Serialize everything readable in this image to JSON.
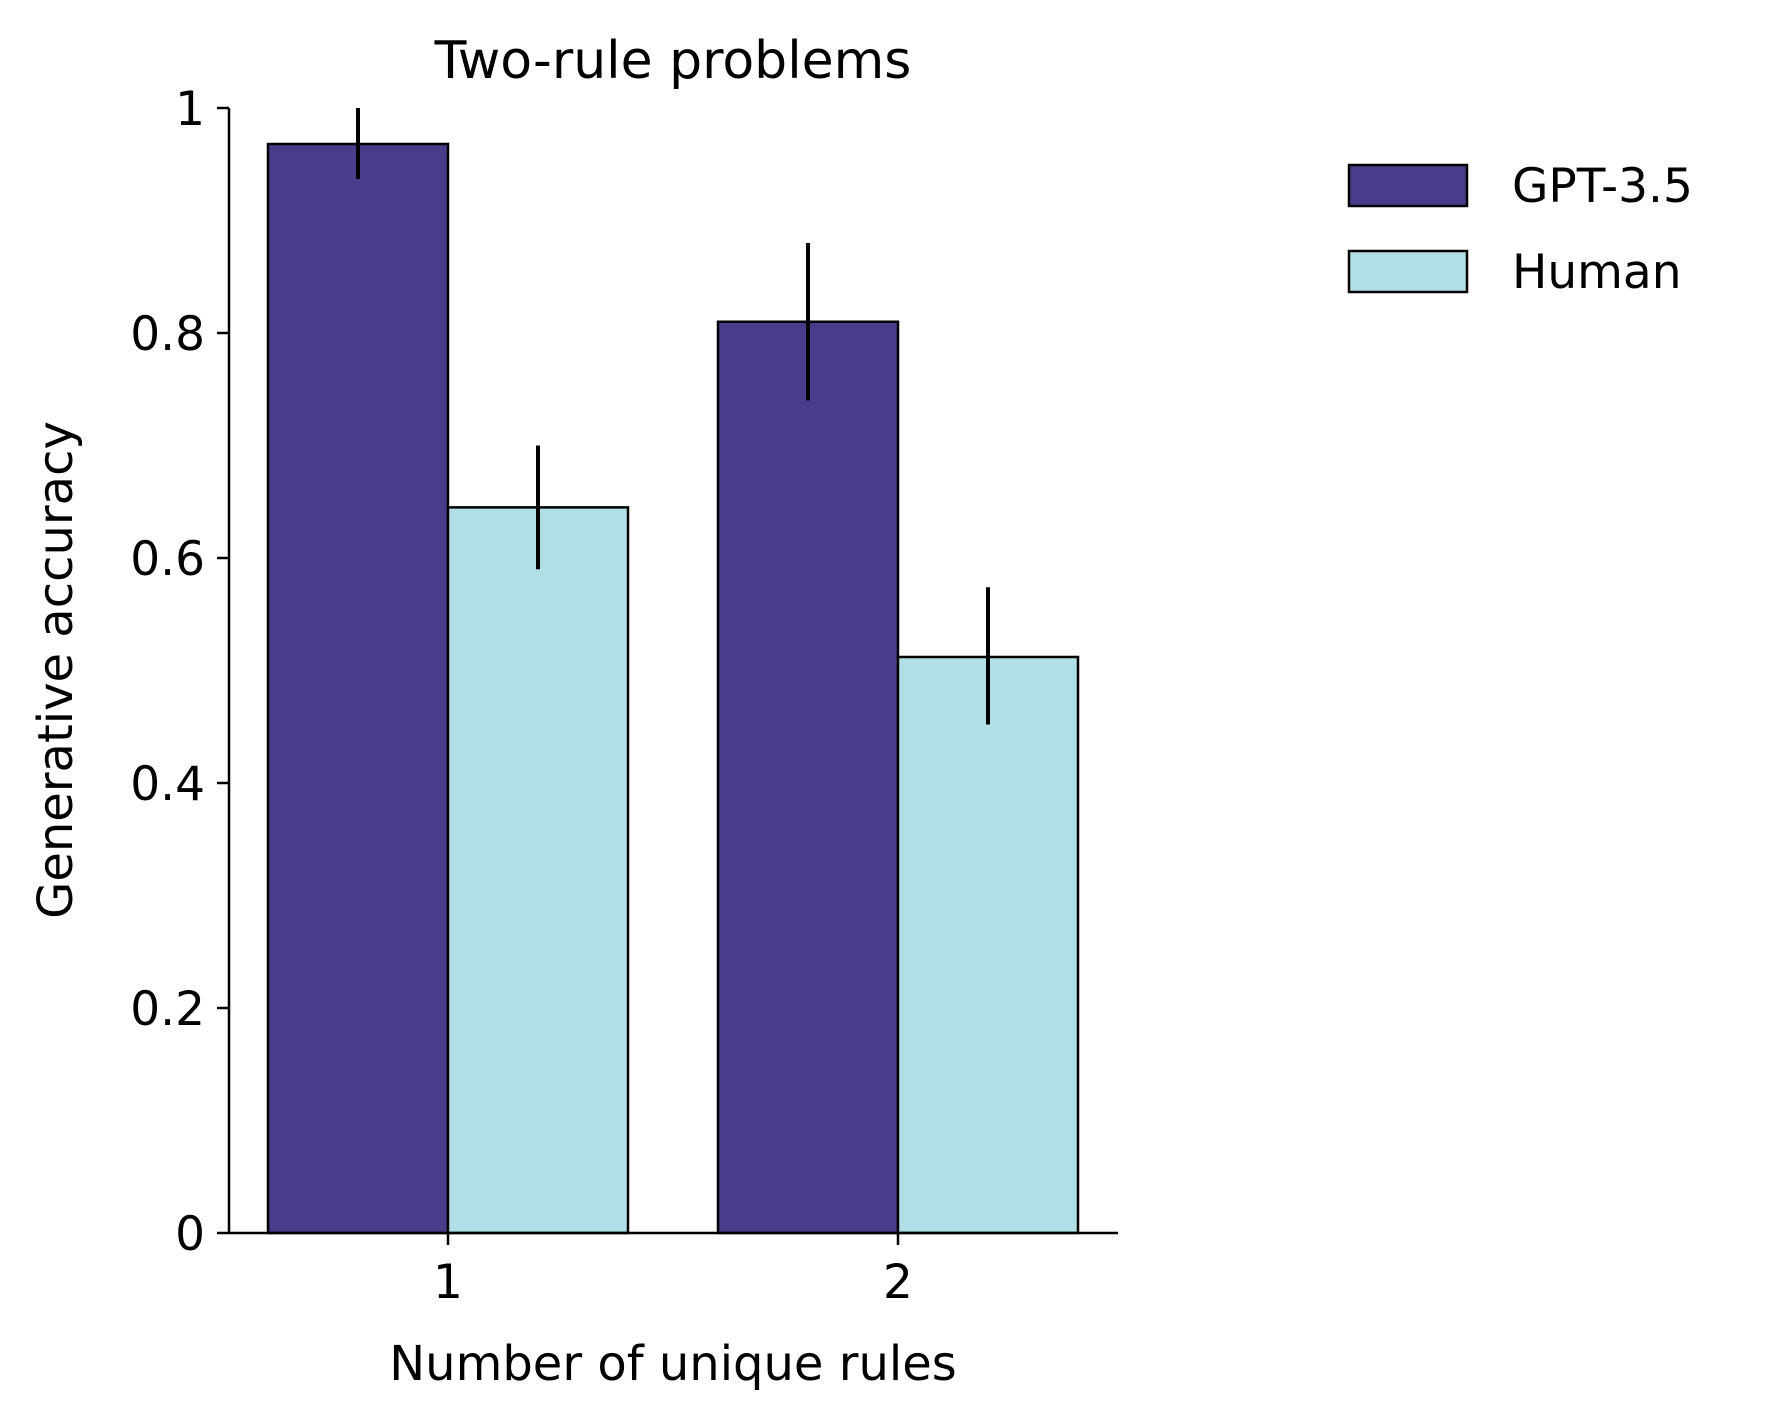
{
  "chart_data": {
    "type": "bar",
    "title": "Two-rule problems",
    "xlabel": "Number of unique rules",
    "ylabel": "Generative accuracy",
    "categories": [
      "1",
      "2"
    ],
    "ylim": [
      0,
      1
    ],
    "yticks": [
      0,
      0.2,
      0.4,
      0.6,
      0.8,
      1
    ],
    "ytick_labels": [
      "0",
      "0.2",
      "0.4",
      "0.6",
      "0.8",
      "1"
    ],
    "grid": false,
    "legend_position": "top-right, outside plot",
    "series": [
      {
        "name": "GPT-3.5",
        "color": "#483D8B",
        "values": [
          0.968,
          0.81
        ],
        "error_low": [
          0.937,
          0.74
        ],
        "error_high": [
          1.0,
          0.88
        ]
      },
      {
        "name": "Human",
        "color": "#B0E0E6",
        "values": [
          0.645,
          0.512
        ],
        "error_low": [
          0.59,
          0.452
        ],
        "error_high": [
          0.7,
          0.574
        ]
      }
    ]
  }
}
